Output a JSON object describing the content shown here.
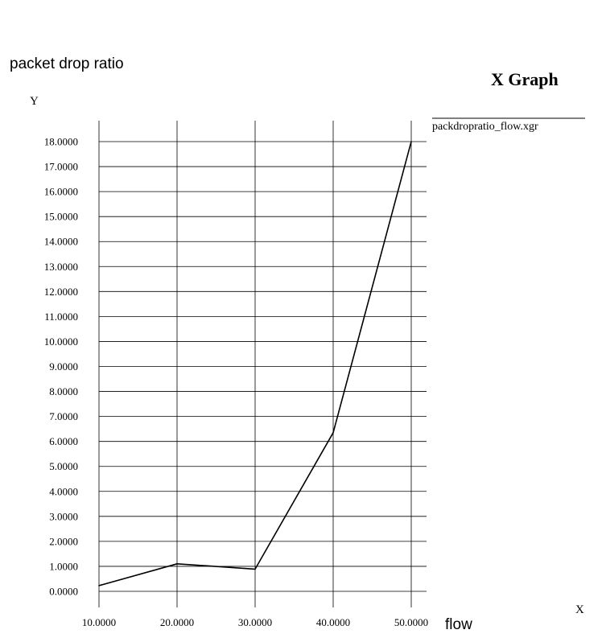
{
  "window": {
    "title": "X Graph"
  },
  "legend": {
    "label": "packdropratio_flow.xgr"
  },
  "chart_data": {
    "type": "line",
    "title": "packet drop ratio",
    "xlabel": "flow",
    "ylabel": "Y",
    "x_axis_corner_label": "X",
    "xlim": [
      10,
      50
    ],
    "ylim": [
      0,
      18
    ],
    "x_ticks": [
      "10.0000",
      "20.0000",
      "30.0000",
      "40.0000",
      "50.0000"
    ],
    "y_ticks": [
      "0.0000",
      "1.0000",
      "2.0000",
      "3.0000",
      "4.0000",
      "5.0000",
      "6.0000",
      "7.0000",
      "8.0000",
      "9.0000",
      "10.0000",
      "11.0000",
      "12.0000",
      "13.0000",
      "14.0000",
      "15.0000",
      "16.0000",
      "17.0000",
      "18.0000"
    ],
    "grid": true,
    "series": [
      {
        "name": "packdropratio_flow.xgr",
        "color": "#000000",
        "x": [
          10,
          20,
          30,
          40,
          50
        ],
        "y": [
          0.23,
          1.1,
          0.89,
          6.35,
          18.0
        ]
      }
    ]
  }
}
